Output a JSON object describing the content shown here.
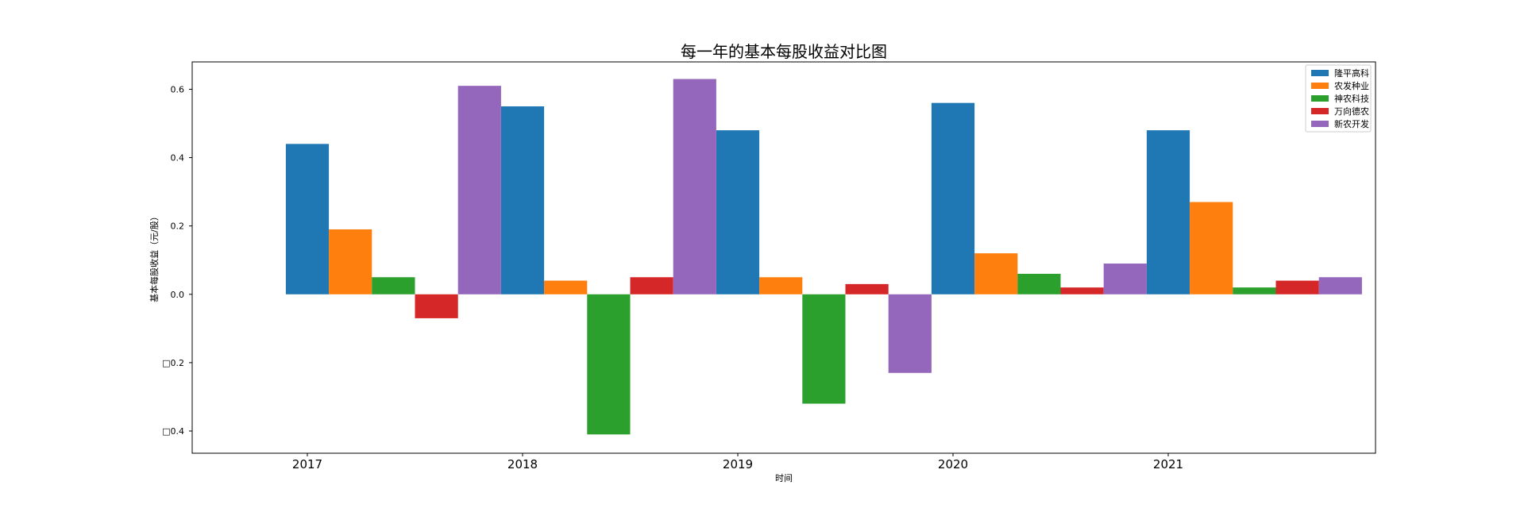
{
  "chart_data": {
    "type": "bar",
    "title": "每一年的基本每股收益对比图",
    "xlabel": "时间",
    "ylabel": "基本每股收益（元/股）",
    "categories": [
      "2017",
      "2018",
      "2019",
      "2020",
      "2021"
    ],
    "ylim": [
      -0.465,
      0.68
    ],
    "yticks": [
      -0.4,
      -0.2,
      0.0,
      0.2,
      0.4,
      0.6
    ],
    "ytick_labels": [
      "□0.4",
      "□0.2",
      "0.0",
      "0.2",
      "0.4",
      "0.6"
    ],
    "grid": false,
    "legend_position": "top-right",
    "series": [
      {
        "name": "隆平高科",
        "color": "#1f77b4",
        "values": [
          0.44,
          0.55,
          0.48,
          0.56,
          0.48
        ]
      },
      {
        "name": "农发种业",
        "color": "#ff7f0e",
        "values": [
          0.19,
          0.04,
          0.05,
          0.12,
          0.27
        ]
      },
      {
        "name": "神农科技",
        "color": "#2ca02c",
        "values": [
          0.05,
          -0.41,
          -0.32,
          0.06,
          0.02
        ]
      },
      {
        "name": "万向德农",
        "color": "#d62728",
        "values": [
          -0.07,
          0.05,
          0.03,
          0.02,
          0.04
        ]
      },
      {
        "name": "新农开发",
        "color": "#9467bd",
        "values": [
          0.61,
          0.63,
          -0.23,
          0.09,
          0.05
        ]
      }
    ]
  }
}
